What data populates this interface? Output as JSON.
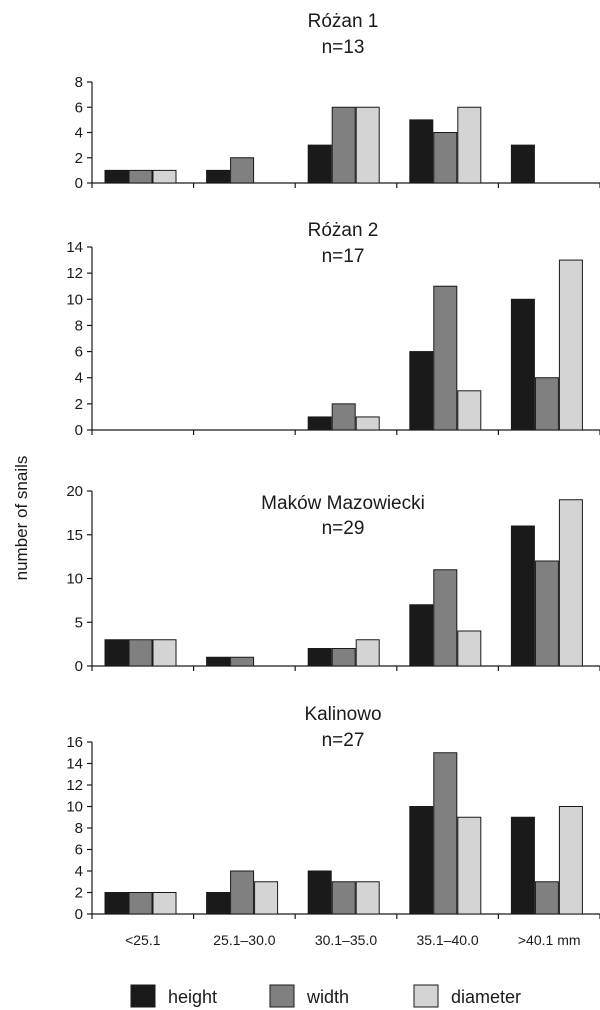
{
  "chart_data": {
    "type": "bar",
    "ylabel": "number of snails",
    "categories": [
      "<25.1",
      "25.1–30.0",
      "30.1–35.0",
      "35.1–40.0",
      ">40.1 mm"
    ],
    "legend": [
      {
        "name": "height",
        "color": "#1a1a1a"
      },
      {
        "name": "width",
        "color": "#808080"
      },
      {
        "name": "diameter",
        "color": "#d4d4d4"
      }
    ],
    "panels": [
      {
        "title": "Różan 1",
        "subtitle": "n=13",
        "ylim": [
          0,
          8
        ],
        "yticks": [
          0,
          2,
          4,
          6,
          8
        ],
        "series": [
          {
            "name": "height",
            "values": [
              1,
              1,
              3,
              5,
              3
            ]
          },
          {
            "name": "width",
            "values": [
              1,
              2,
              6,
              4,
              0
            ]
          },
          {
            "name": "diameter",
            "values": [
              1,
              0,
              6,
              6,
              0
            ]
          }
        ]
      },
      {
        "title": "Różan 2",
        "subtitle": "n=17",
        "ylim": [
          0,
          14
        ],
        "yticks": [
          0,
          2,
          4,
          6,
          8,
          10,
          12,
          14
        ],
        "series": [
          {
            "name": "height",
            "values": [
              0,
              0,
              1,
              6,
              10
            ]
          },
          {
            "name": "width",
            "values": [
              0,
              0,
              2,
              11,
              4
            ]
          },
          {
            "name": "diameter",
            "values": [
              0,
              0,
              1,
              3,
              13
            ]
          }
        ]
      },
      {
        "title": "Maków Mazowiecki",
        "subtitle": "n=29",
        "ylim": [
          0,
          20
        ],
        "yticks": [
          0,
          5,
          10,
          15,
          20
        ],
        "series": [
          {
            "name": "height",
            "values": [
              3,
              1,
              2,
              7,
              16
            ]
          },
          {
            "name": "width",
            "values": [
              3,
              1,
              2,
              11,
              12
            ]
          },
          {
            "name": "diameter",
            "values": [
              3,
              0,
              3,
              4,
              19
            ]
          }
        ]
      },
      {
        "title": "Kalinowo",
        "subtitle": "n=27",
        "ylim": [
          0,
          16
        ],
        "yticks": [
          0,
          2,
          4,
          6,
          8,
          10,
          12,
          14,
          16
        ],
        "series": [
          {
            "name": "height",
            "values": [
              2,
              2,
              4,
              10,
              9
            ]
          },
          {
            "name": "width",
            "values": [
              2,
              4,
              3,
              15,
              3
            ]
          },
          {
            "name": "diameter",
            "values": [
              2,
              3,
              3,
              9,
              10
            ]
          }
        ]
      }
    ]
  }
}
